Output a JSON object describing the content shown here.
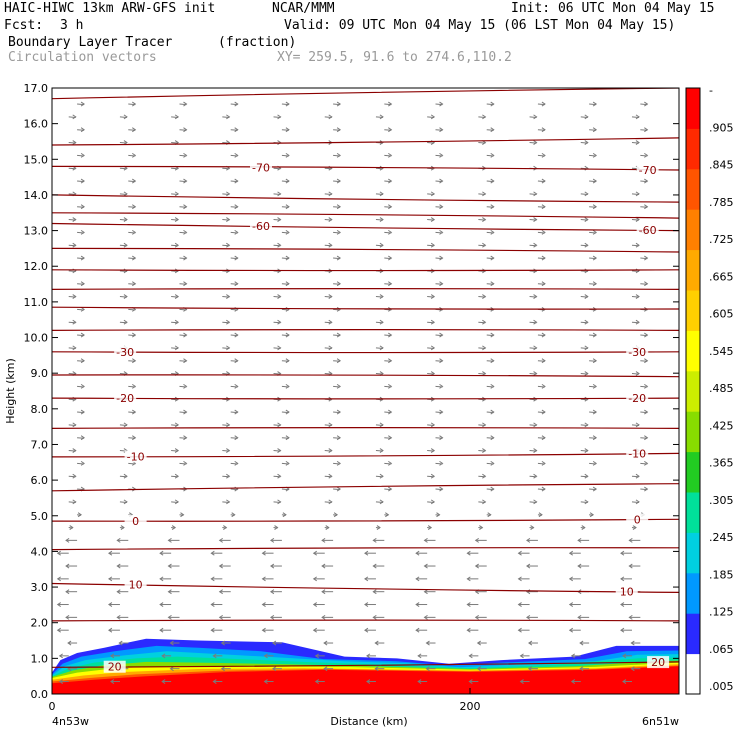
{
  "header": {
    "model": "HAIC-HIWC 13km ARW-GFS init",
    "org": "NCAR/MMM",
    "init": "Init: 06 UTC Mon 04 May 15",
    "fcst_label": "Fcst:",
    "fcst_value": "3 h",
    "valid": "Valid: 09 UTC Mon 04 May 15 (06 LST Mon 04 May 15)",
    "field": "Boundary Layer Tracer",
    "field_units": "(fraction)",
    "vectors": "Circulation vectors",
    "xy": "XY= 259.5, 91.6 to 274.6,110.2"
  },
  "colors": {
    "contour": "#8b0000",
    "vector": "#7a7a7a",
    "colorbar": [
      "#ffffff",
      "#2a2aff",
      "#0099ff",
      "#00d0e0",
      "#00e09a",
      "#22cc22",
      "#88dd00",
      "#ccee00",
      "#ffff00",
      "#ffd000",
      "#ffaa00",
      "#ff8000",
      "#ff5500",
      "#ff2a00",
      "#ff0000"
    ]
  },
  "chart_data": {
    "type": "heatmap",
    "xlabel": "Distance (km)",
    "ylabel": "Height (km)",
    "xlim": [
      0,
      300
    ],
    "ylim": [
      0,
      17
    ],
    "x_ticks": [
      {
        "value": 0,
        "label": "0"
      },
      {
        "value": 200,
        "label": "200"
      }
    ],
    "y_ticks": [
      {
        "value": 0,
        "label": "0.0"
      },
      {
        "value": 1,
        "label": "1.0"
      },
      {
        "value": 2,
        "label": "2.0"
      },
      {
        "value": 3,
        "label": "3.0"
      },
      {
        "value": 4,
        "label": "4.0"
      },
      {
        "value": 5,
        "label": "5.0"
      },
      {
        "value": 6,
        "label": "6.0"
      },
      {
        "value": 7,
        "label": "7.0"
      },
      {
        "value": 8,
        "label": "8.0"
      },
      {
        "value": 9,
        "label": "9.0"
      },
      {
        "value": 10,
        "label": "10.0"
      },
      {
        "value": 11,
        "label": "11.0"
      },
      {
        "value": 12,
        "label": "12.0"
      },
      {
        "value": 13,
        "label": "13.0"
      },
      {
        "value": 14,
        "label": "14.0"
      },
      {
        "value": 15,
        "label": "15.0"
      },
      {
        "value": 16,
        "label": "16.0"
      },
      {
        "value": 17,
        "label": "17.0"
      }
    ],
    "endpoints": {
      "left": "4n53w",
      "right": "6n51w"
    },
    "colorbar_labels": [
      "-",
      ".905",
      ".845",
      ".785",
      ".725",
      ".665",
      ".605",
      ".545",
      ".485",
      ".425",
      ".365",
      ".305",
      ".245",
      ".185",
      ".125",
      ".065",
      ".005"
    ],
    "tracer_layers": [
      {
        "color": "#2a2aff",
        "points": [
          [
            0,
            0.6
          ],
          [
            4,
            0.95
          ],
          [
            12,
            1.15
          ],
          [
            25,
            1.3
          ],
          [
            45,
            1.55
          ],
          [
            70,
            1.5
          ],
          [
            110,
            1.45
          ],
          [
            140,
            1.05
          ],
          [
            165,
            1.0
          ],
          [
            190,
            0.85
          ],
          [
            215,
            0.95
          ],
          [
            250,
            1.05
          ],
          [
            270,
            1.35
          ],
          [
            300,
            1.35
          ]
        ]
      },
      {
        "color": "#0099ff",
        "points": [
          [
            0,
            0.55
          ],
          [
            5,
            0.85
          ],
          [
            14,
            1.05
          ],
          [
            30,
            1.2
          ],
          [
            50,
            1.35
          ],
          [
            70,
            1.3
          ],
          [
            100,
            1.2
          ],
          [
            130,
            0.98
          ],
          [
            165,
            0.92
          ],
          [
            190,
            0.8
          ],
          [
            215,
            0.88
          ],
          [
            255,
            0.98
          ],
          [
            275,
            1.2
          ],
          [
            300,
            1.22
          ]
        ]
      },
      {
        "color": "#00d0e0",
        "points": [
          [
            0,
            0.52
          ],
          [
            6,
            0.78
          ],
          [
            16,
            0.95
          ],
          [
            34,
            1.08
          ],
          [
            55,
            1.2
          ],
          [
            80,
            1.12
          ],
          [
            110,
            1.02
          ],
          [
            140,
            0.92
          ],
          [
            170,
            0.86
          ],
          [
            195,
            0.75
          ],
          [
            220,
            0.82
          ],
          [
            260,
            0.92
          ],
          [
            280,
            1.1
          ],
          [
            300,
            1.12
          ]
        ]
      },
      {
        "color": "#00e09a",
        "points": [
          [
            0,
            0.5
          ],
          [
            8,
            0.72
          ],
          [
            20,
            0.88
          ],
          [
            40,
            1.0
          ],
          [
            60,
            1.05
          ],
          [
            90,
            0.98
          ],
          [
            120,
            0.9
          ],
          [
            160,
            0.82
          ],
          [
            200,
            0.72
          ],
          [
            240,
            0.82
          ],
          [
            280,
            1.0
          ],
          [
            300,
            1.02
          ]
        ]
      },
      {
        "color": "#88dd00",
        "points": [
          [
            0,
            0.48
          ],
          [
            10,
            0.66
          ],
          [
            24,
            0.8
          ],
          [
            45,
            0.9
          ],
          [
            70,
            0.88
          ],
          [
            100,
            0.85
          ],
          [
            140,
            0.8
          ],
          [
            200,
            0.7
          ],
          [
            250,
            0.78
          ],
          [
            290,
            0.92
          ],
          [
            300,
            0.94
          ]
        ]
      },
      {
        "color": "#ffff00",
        "points": [
          [
            0,
            0.45
          ],
          [
            12,
            0.6
          ],
          [
            30,
            0.72
          ],
          [
            55,
            0.78
          ],
          [
            90,
            0.78
          ],
          [
            140,
            0.76
          ],
          [
            200,
            0.68
          ],
          [
            260,
            0.76
          ],
          [
            300,
            0.88
          ]
        ]
      },
      {
        "color": "#ffaa00",
        "points": [
          [
            0,
            0.4
          ],
          [
            15,
            0.52
          ],
          [
            35,
            0.62
          ],
          [
            70,
            0.7
          ],
          [
            120,
            0.72
          ],
          [
            200,
            0.66
          ],
          [
            260,
            0.72
          ],
          [
            300,
            0.84
          ]
        ]
      },
      {
        "color": "#ff5500",
        "points": [
          [
            0,
            0.35
          ],
          [
            18,
            0.45
          ],
          [
            40,
            0.55
          ],
          [
            80,
            0.65
          ],
          [
            130,
            0.7
          ],
          [
            200,
            0.64
          ],
          [
            260,
            0.7
          ],
          [
            300,
            0.8
          ]
        ]
      },
      {
        "color": "#ff0000",
        "points": [
          [
            0,
            0.3
          ],
          [
            20,
            0.4
          ],
          [
            45,
            0.5
          ],
          [
            85,
            0.62
          ],
          [
            130,
            0.68
          ],
          [
            200,
            0.62
          ],
          [
            260,
            0.68
          ],
          [
            300,
            0.78
          ]
        ]
      }
    ],
    "contours": [
      {
        "y": [
          16.7,
          17.0
        ]
      },
      {
        "y": [
          15.4,
          15.6
        ]
      },
      {
        "y": [
          14.8,
          14.7
        ],
        "label": "-70",
        "lx": [
          100,
          285
        ]
      },
      {
        "y": [
          14.0,
          13.8
        ]
      },
      {
        "y": [
          13.5,
          13.35
        ]
      },
      {
        "y": [
          13.2,
          13.0
        ],
        "label": "-60",
        "lx": [
          100,
          285
        ]
      },
      {
        "y": [
          12.5,
          12.4
        ]
      },
      {
        "y": [
          11.9,
          11.9
        ]
      },
      {
        "y": [
          11.35,
          11.35
        ]
      },
      {
        "y": [
          10.85,
          10.8
        ]
      },
      {
        "y": [
          10.2,
          10.2
        ]
      },
      {
        "y": [
          9.6,
          9.6
        ],
        "label": "-30",
        "lx": [
          35,
          280
        ]
      },
      {
        "y": [
          8.95,
          8.9
        ]
      },
      {
        "y": [
          8.3,
          8.3
        ],
        "label": "-20",
        "lx": [
          35,
          280
        ]
      },
      {
        "y": [
          7.45,
          7.45
        ]
      },
      {
        "y": [
          6.65,
          6.75
        ],
        "label": "-10",
        "lx": [
          40,
          280
        ]
      },
      {
        "y": [
          5.7,
          5.9
        ]
      },
      {
        "y": [
          4.85,
          4.9
        ],
        "label": "0",
        "lx": [
          40,
          280
        ]
      },
      {
        "y": [
          4.05,
          4.1
        ]
      },
      {
        "y": [
          3.1,
          2.85
        ],
        "label": "10",
        "lx": [
          40,
          275
        ]
      },
      {
        "y": [
          2.05,
          2.05
        ]
      },
      {
        "y": [
          0.75,
          0.9
        ],
        "label": "20",
        "lx": [
          30,
          290
        ]
      }
    ]
  }
}
